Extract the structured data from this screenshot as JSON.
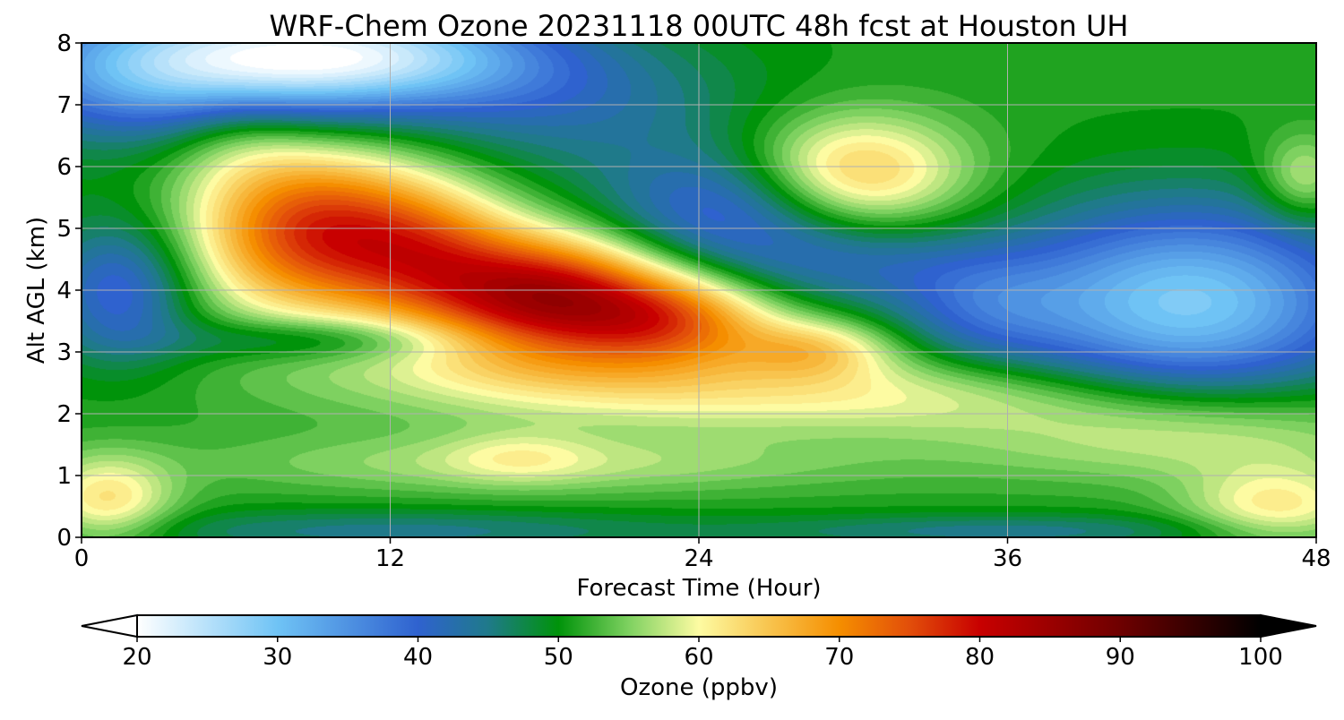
{
  "chart_data": {
    "type": "heatmap",
    "title": "WRF-Chem Ozone  20231118 00UTC 48h fcst at Houston UH",
    "xlabel": "Forecast Time (Hour)",
    "ylabel": "Alt AGL (km)",
    "xlim": [
      0,
      48
    ],
    "ylim": [
      0,
      8
    ],
    "xticks": [
      0,
      12,
      24,
      36,
      48
    ],
    "yticks": [
      0,
      1,
      2,
      3,
      4,
      5,
      6,
      7,
      8
    ],
    "grid": true,
    "colorbar": {
      "label": "Ozone  (ppbv)",
      "min": 20,
      "max": 100,
      "ticks": [
        20,
        30,
        40,
        50,
        60,
        70,
        80,
        90,
        100
      ],
      "extend": "both",
      "orientation": "horizontal",
      "stops": [
        {
          "v": 20,
          "color": "#ffffff"
        },
        {
          "v": 30,
          "color": "#6fc3f5"
        },
        {
          "v": 40,
          "color": "#2f62cf"
        },
        {
          "v": 45,
          "color": "#1f7a8a"
        },
        {
          "v": 50,
          "color": "#00930a"
        },
        {
          "v": 55,
          "color": "#7ed160"
        },
        {
          "v": 60,
          "color": "#fdfba2"
        },
        {
          "v": 65,
          "color": "#f8c44e"
        },
        {
          "v": 70,
          "color": "#f58e00"
        },
        {
          "v": 75,
          "color": "#e24e0a"
        },
        {
          "v": 80,
          "color": "#c80000"
        },
        {
          "v": 90,
          "color": "#6e0000"
        },
        {
          "v": 100,
          "color": "#000000"
        }
      ]
    },
    "background": 51,
    "features": [
      {
        "x": 9,
        "y": 4.95,
        "sx": 3.2,
        "sy": 0.95,
        "a": 25
      },
      {
        "x": 13.5,
        "y": 4.6,
        "sx": 2.5,
        "sy": 0.8,
        "a": 14
      },
      {
        "x": 18,
        "y": 3.9,
        "sx": 3.2,
        "sy": 0.7,
        "a": 30
      },
      {
        "x": 23,
        "y": 3.5,
        "sx": 2.8,
        "sy": 0.55,
        "a": 19
      },
      {
        "x": 28.5,
        "y": 3.05,
        "sx": 2.2,
        "sy": 0.35,
        "a": 11
      },
      {
        "x": 30,
        "y": 5.9,
        "sx": 3.0,
        "sy": 0.65,
        "a": 15
      },
      {
        "x": 47.5,
        "y": 5.8,
        "sx": 1.2,
        "sy": 0.5,
        "a": 8
      },
      {
        "x": 6,
        "y": 6.5,
        "sx": 2.0,
        "sy": 0.6,
        "a": 5
      },
      {
        "x": 17,
        "y": 2.75,
        "sx": 6.0,
        "sy": 0.35,
        "a": 4
      },
      {
        "x": 28,
        "y": 2.3,
        "sx": 11.0,
        "sy": 0.45,
        "a": 9
      },
      {
        "x": 18,
        "y": 1.2,
        "sx": 9.0,
        "sy": 0.35,
        "a": 6
      },
      {
        "x": 43,
        "y": 1.6,
        "sx": 6.0,
        "sy": 0.5,
        "a": 8
      },
      {
        "x": 1,
        "y": 0.6,
        "sx": 1.8,
        "sy": 0.5,
        "a": 11
      },
      {
        "x": 46.5,
        "y": 0.5,
        "sx": 2.5,
        "sy": 0.45,
        "a": 10
      },
      {
        "x": 17,
        "y": 1.3,
        "sx": 2.0,
        "sy": 0.3,
        "a": 4
      },
      {
        "x": 3.5,
        "y": 7.6,
        "sx": 5.0,
        "sy": 0.8,
        "a": -20
      },
      {
        "x": 11,
        "y": 7.8,
        "sx": 5.0,
        "sy": 0.6,
        "a": -23
      },
      {
        "x": 19,
        "y": 7.0,
        "sx": 5.0,
        "sy": 0.8,
        "a": -7
      },
      {
        "x": 25,
        "y": 5.3,
        "sx": 3.5,
        "sy": 0.7,
        "a": -12
      },
      {
        "x": 30,
        "y": 4.4,
        "sx": 4.0,
        "sy": 0.5,
        "a": -7
      },
      {
        "x": 35,
        "y": 3.7,
        "sx": 2.5,
        "sy": 0.6,
        "a": -7
      },
      {
        "x": 43,
        "y": 3.8,
        "sx": 5.0,
        "sy": 1.1,
        "a": -22
      },
      {
        "x": 1.5,
        "y": 4.0,
        "sx": 2.0,
        "sy": 0.8,
        "a": -12
      },
      {
        "x": 9,
        "y": 3.2,
        "sx": 4.0,
        "sy": 0.25,
        "a": -7
      },
      {
        "x": 12,
        "y": 0.1,
        "sx": 8.0,
        "sy": 0.25,
        "a": -6
      },
      {
        "x": 36,
        "y": 0.1,
        "sx": 7.0,
        "sy": 0.2,
        "a": -6
      }
    ]
  }
}
